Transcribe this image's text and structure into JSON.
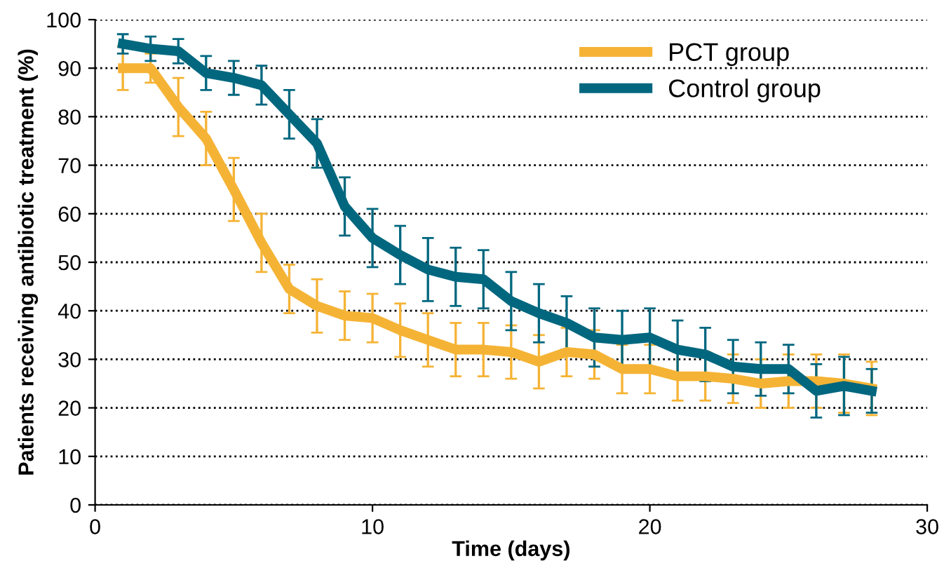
{
  "chart_data": {
    "type": "line",
    "xlabel": "Time (days)",
    "ylabel": "Patients receiving antibiotic treatment (%)",
    "x": [
      1,
      2,
      3,
      4,
      5,
      6,
      7,
      8,
      9,
      10,
      11,
      12,
      13,
      14,
      15,
      16,
      17,
      18,
      19,
      20,
      21,
      22,
      23,
      24,
      25,
      26,
      27,
      28
    ],
    "series": [
      {
        "name": "PCT group",
        "color": "#f5b335",
        "values": [
          90,
          90,
          82,
          75.5,
          65,
          54,
          44.5,
          41,
          39,
          38.5,
          36,
          34,
          32,
          32,
          31.5,
          29.5,
          31.5,
          31,
          28,
          28,
          26.5,
          26.5,
          26,
          25,
          25.5,
          25.5,
          25,
          24
        ],
        "errors": [
          4.5,
          3,
          6,
          5.5,
          6.5,
          6,
          5,
          5.5,
          5,
          5,
          5.5,
          5.5,
          5.5,
          5.5,
          5.5,
          5.5,
          5,
          5,
          5,
          5,
          5,
          5,
          5,
          5,
          5.5,
          5.5,
          6,
          5.5
        ]
      },
      {
        "name": "Control group",
        "color": "#00677f",
        "values": [
          95,
          94,
          93.5,
          89,
          88,
          86.5,
          80.5,
          74.5,
          61.5,
          55,
          51.5,
          48.5,
          47,
          46.5,
          42,
          39.5,
          37.5,
          34.5,
          34,
          34.5,
          32,
          31,
          28.5,
          28,
          28,
          23.5,
          24.5,
          23.5
        ],
        "errors": [
          2,
          2.5,
          2.5,
          3.5,
          3.5,
          4,
          5,
          5,
          6,
          6,
          6,
          6.5,
          6,
          6,
          6,
          6,
          5.5,
          6,
          6,
          6,
          6,
          5.5,
          5.5,
          5.5,
          5,
          5.5,
          6,
          4.5
        ]
      }
    ],
    "xlim": [
      0,
      30
    ],
    "xticks": [
      0,
      10,
      20,
      30
    ],
    "ylim": [
      0,
      100
    ],
    "yticks": [
      0,
      10,
      20,
      30,
      40,
      50,
      60,
      70,
      80,
      90,
      100
    ],
    "grid": "y",
    "legend": "top right",
    "marker": "none",
    "line_style": "solid"
  }
}
